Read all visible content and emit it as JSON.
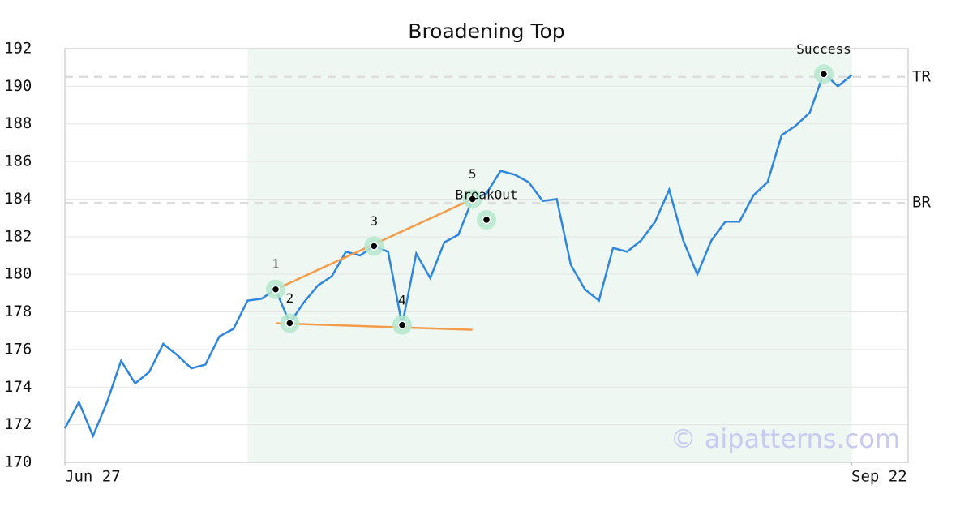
{
  "chart_data": {
    "type": "line",
    "title": "Broadening Top",
    "color": "#2e86de",
    "values": [
      171.8,
      173.2,
      171.4,
      173.2,
      175.4,
      174.2,
      174.8,
      176.3,
      175.7,
      175.0,
      175.2,
      176.7,
      177.1,
      178.6,
      178.7,
      179.2,
      177.4,
      178.5,
      179.4,
      179.9,
      181.2,
      181.0,
      181.5,
      181.2,
      177.3,
      181.1,
      179.8,
      181.7,
      182.1,
      184.0,
      184.3,
      185.5,
      185.3,
      184.9,
      183.9,
      184.0,
      180.5,
      179.2,
      178.6,
      181.4,
      181.2,
      181.8,
      182.8,
      184.5,
      181.8,
      180.0,
      181.8,
      182.8,
      182.8,
      184.2,
      184.9,
      187.4,
      187.9,
      188.6,
      190.7,
      190.0,
      190.6
    ],
    "xlim": [
      0,
      60
    ],
    "xticks": [
      {
        "value": 0,
        "label": "Jun 27"
      },
      {
        "value": 56,
        "label": "Sep 22"
      }
    ],
    "ylim": [
      170,
      192
    ],
    "yticks": [
      170,
      172,
      174,
      176,
      178,
      180,
      182,
      184,
      186,
      188,
      190,
      192
    ],
    "grid": true,
    "shade": {
      "x": [
        13,
        56
      ],
      "color": "#eef7f2"
    },
    "hlines": [
      {
        "label": "TR",
        "value": 190.5
      },
      {
        "label": "BR",
        "value": 183.8
      }
    ],
    "trendlines": [
      {
        "x": [
          15,
          29
        ],
        "y": [
          179.2,
          184.0
        ]
      },
      {
        "x": [
          15,
          29
        ],
        "y": [
          177.4,
          177.05
        ]
      }
    ],
    "trend_color": "#f39c4a",
    "points": [
      {
        "label": "1",
        "x": 15,
        "y": 179.2
      },
      {
        "label": "2",
        "x": 16,
        "y": 177.4
      },
      {
        "label": "3",
        "x": 22,
        "y": 181.5
      },
      {
        "label": "4",
        "x": 24,
        "y": 177.3
      },
      {
        "label": "5",
        "x": 29,
        "y": 184.0
      },
      {
        "label": "BreakOut",
        "x": 30,
        "y": 182.9
      },
      {
        "label": "Success",
        "x": 54,
        "y": 190.65
      }
    ],
    "watermark": "© aipatterns.com"
  }
}
